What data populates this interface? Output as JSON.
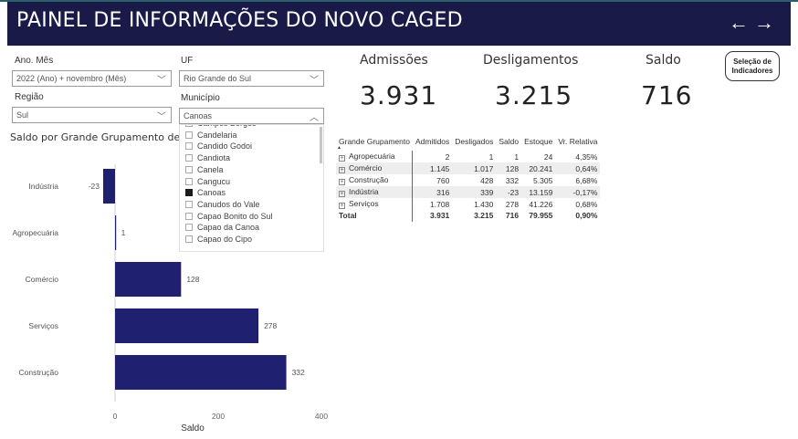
{
  "header": {
    "title": "PAINEL DE INFORMAÇÕES DO NOVO CAGED",
    "back_icon": "←",
    "forward_icon": "→"
  },
  "filters": {
    "ano_mes": {
      "label": "Ano. Mês",
      "value": "2022 (Ano) + novembro (Mês)"
    },
    "uf": {
      "label": "UF",
      "value": "Rio Grande do Sul"
    },
    "regiao": {
      "label": "Região",
      "value": "Sul"
    },
    "municipio": {
      "label": "Município",
      "value": "Canoas"
    },
    "chevron_down": "﹀",
    "chevron_up": "︿"
  },
  "municipio_list": [
    {
      "label": "Campos Borges",
      "checked": false
    },
    {
      "label": "Candelaria",
      "checked": false
    },
    {
      "label": "Candido Godoi",
      "checked": false
    },
    {
      "label": "Candiota",
      "checked": false
    },
    {
      "label": "Canela",
      "checked": false
    },
    {
      "label": "Cangucu",
      "checked": false
    },
    {
      "label": "Canoas",
      "checked": true
    },
    {
      "label": "Canudos do Vale",
      "checked": false
    },
    {
      "label": "Capao Bonito do Sul",
      "checked": false
    },
    {
      "label": "Capao da Canoa",
      "checked": false
    },
    {
      "label": "Capao do Cipo",
      "checked": false
    }
  ],
  "kpis": {
    "admissoes": {
      "label": "Admissões",
      "value": "3.931"
    },
    "desligamentos": {
      "label": "Desligamentos",
      "value": "3.215"
    },
    "saldo": {
      "label": "Saldo",
      "value": "716"
    }
  },
  "selecao_button": {
    "line1": "Seleção de",
    "line2": "Indicadores"
  },
  "table": {
    "columns": [
      "Grande Grupamento",
      "Admitidos",
      "Desligados",
      "Saldo",
      "Estoque",
      "Vr. Relativa"
    ],
    "rows": [
      [
        "Agropecuária",
        "2",
        "1",
        "1",
        "24",
        "4,35%"
      ],
      [
        "Comércio",
        "1.145",
        "1.017",
        "128",
        "20.241",
        "0,64%"
      ],
      [
        "Construção",
        "760",
        "428",
        "332",
        "5.305",
        "6,68%"
      ],
      [
        "Indústria",
        "316",
        "339",
        "-23",
        "13.159",
        "-0,17%"
      ],
      [
        "Serviços",
        "1.708",
        "1.430",
        "278",
        "41.226",
        "0,68%"
      ]
    ],
    "total": [
      "Total",
      "3.931",
      "3.215",
      "716",
      "79.955",
      "0,90%"
    ],
    "sort_icon": "▲",
    "expand_icon": "+"
  },
  "chart_data": {
    "type": "bar",
    "orientation": "horizontal",
    "title": "Saldo por Grande Grupamento de Ati",
    "categories": [
      "Indústria",
      "Agropecuária",
      "Comércio",
      "Serviços",
      "Construção"
    ],
    "values": [
      -23,
      1,
      128,
      278,
      332
    ],
    "xlabel": "Saldo",
    "xticks": [
      0,
      200,
      400
    ],
    "xlim": [
      -30,
      400
    ],
    "bar_color": "#202070"
  }
}
